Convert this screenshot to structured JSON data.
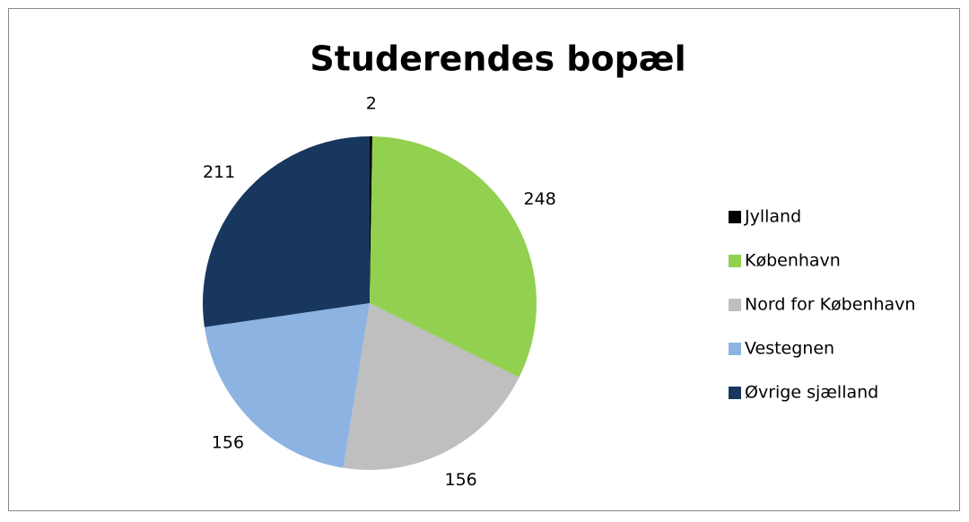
{
  "chart_data": {
    "type": "pie",
    "title": "Studerendes bopæl",
    "categories": [
      "Jylland",
      "København",
      "Nord for København",
      "Vestegnen",
      "Øvrige sjælland"
    ],
    "values": [
      2,
      248,
      156,
      156,
      211
    ],
    "colors": [
      "#000000",
      "#92d050",
      "#bfbfbf",
      "#8db3e2",
      "#17375e"
    ],
    "legend": "right"
  }
}
